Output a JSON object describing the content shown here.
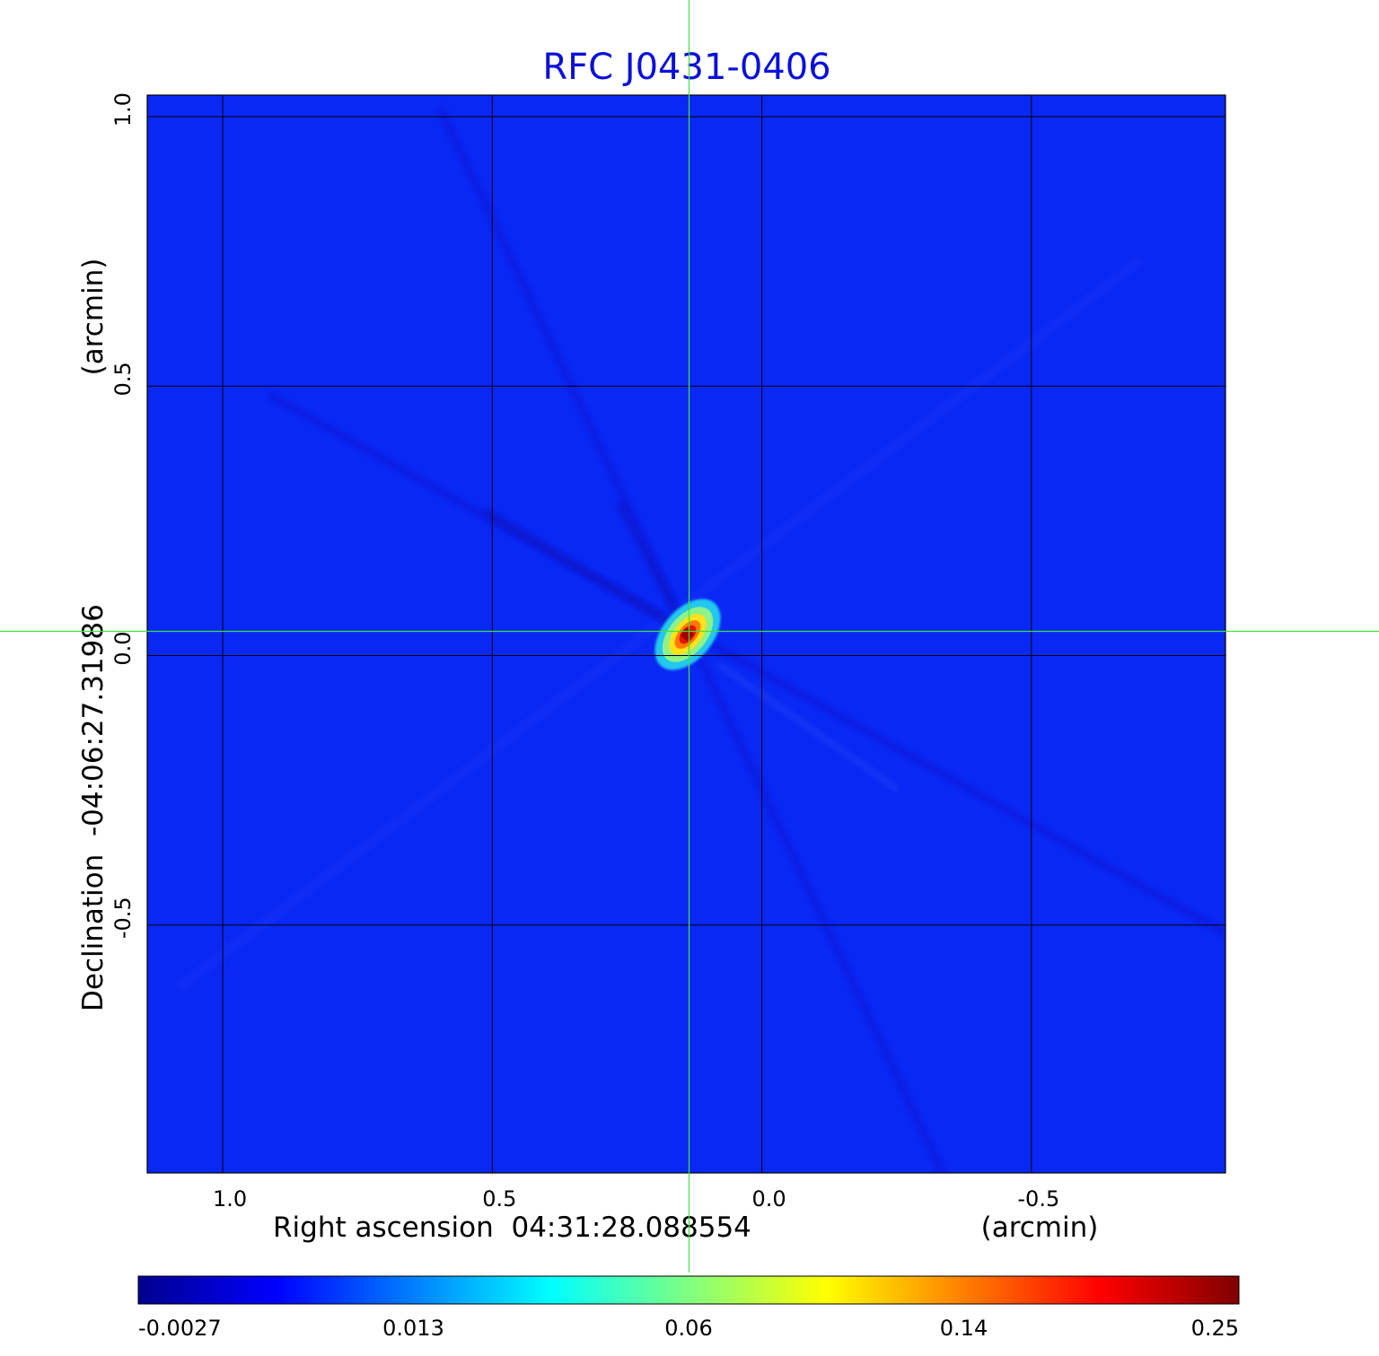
{
  "chart_data": {
    "type": "heatmap",
    "title": "RFC J0431-0406",
    "title_color": "#0a10d8",
    "xlabel": "Right ascension  04:31:28.088554",
    "xunit": "(arcmin)",
    "ylabel": "Declination  -04:06:27.31986",
    "yunit": "(arcmin)",
    "xlim": [
      1.14,
      -0.86
    ],
    "ylim": [
      -0.96,
      1.04
    ],
    "x_ticks": [
      1.0,
      0.5,
      0.0,
      -0.5
    ],
    "x_tick_labels": [
      "1.0",
      "0.5",
      "0.0",
      "-0.5"
    ],
    "y_ticks": [
      1.0,
      0.5,
      0.0,
      -0.5
    ],
    "y_tick_labels": [
      "1.0",
      "0.5",
      "0.0",
      "-0.5"
    ],
    "grid": true,
    "crosshair": {
      "x": 0.135,
      "y": 0.045,
      "color": "#3ee43e"
    },
    "source_peak": {
      "x": 0.135,
      "y": 0.045,
      "value": 0.25
    },
    "colormap": "jet",
    "colorbar": {
      "tick_labels": [
        "-0.0027",
        "0.013",
        "0.06",
        "0.14",
        "0.25"
      ],
      "min": -0.0027,
      "max": 0.25
    }
  }
}
